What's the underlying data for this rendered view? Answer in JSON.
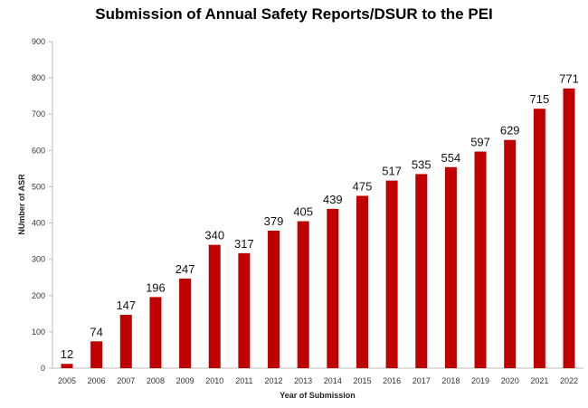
{
  "chart_data": {
    "type": "bar",
    "title": "Submission of Annual Safety Reports/DSUR to the PEI",
    "xlabel": "Year of Submission",
    "ylabel": "NUmber of ASR",
    "categories": [
      "2005",
      "2006",
      "2007",
      "2008",
      "2009",
      "2010",
      "2011",
      "2012",
      "2013",
      "2014",
      "2015",
      "2016",
      "2017",
      "2018",
      "2019",
      "2020",
      "2021",
      "2022"
    ],
    "values": [
      12,
      74,
      147,
      196,
      247,
      340,
      317,
      379,
      405,
      439,
      475,
      517,
      535,
      554,
      597,
      629,
      715,
      771
    ],
    "ylim": [
      0,
      900
    ],
    "yticks": [
      0,
      100,
      200,
      300,
      400,
      500,
      600,
      700,
      800,
      900
    ],
    "grid": false,
    "legend": "none",
    "bar_color": "#c00000"
  }
}
